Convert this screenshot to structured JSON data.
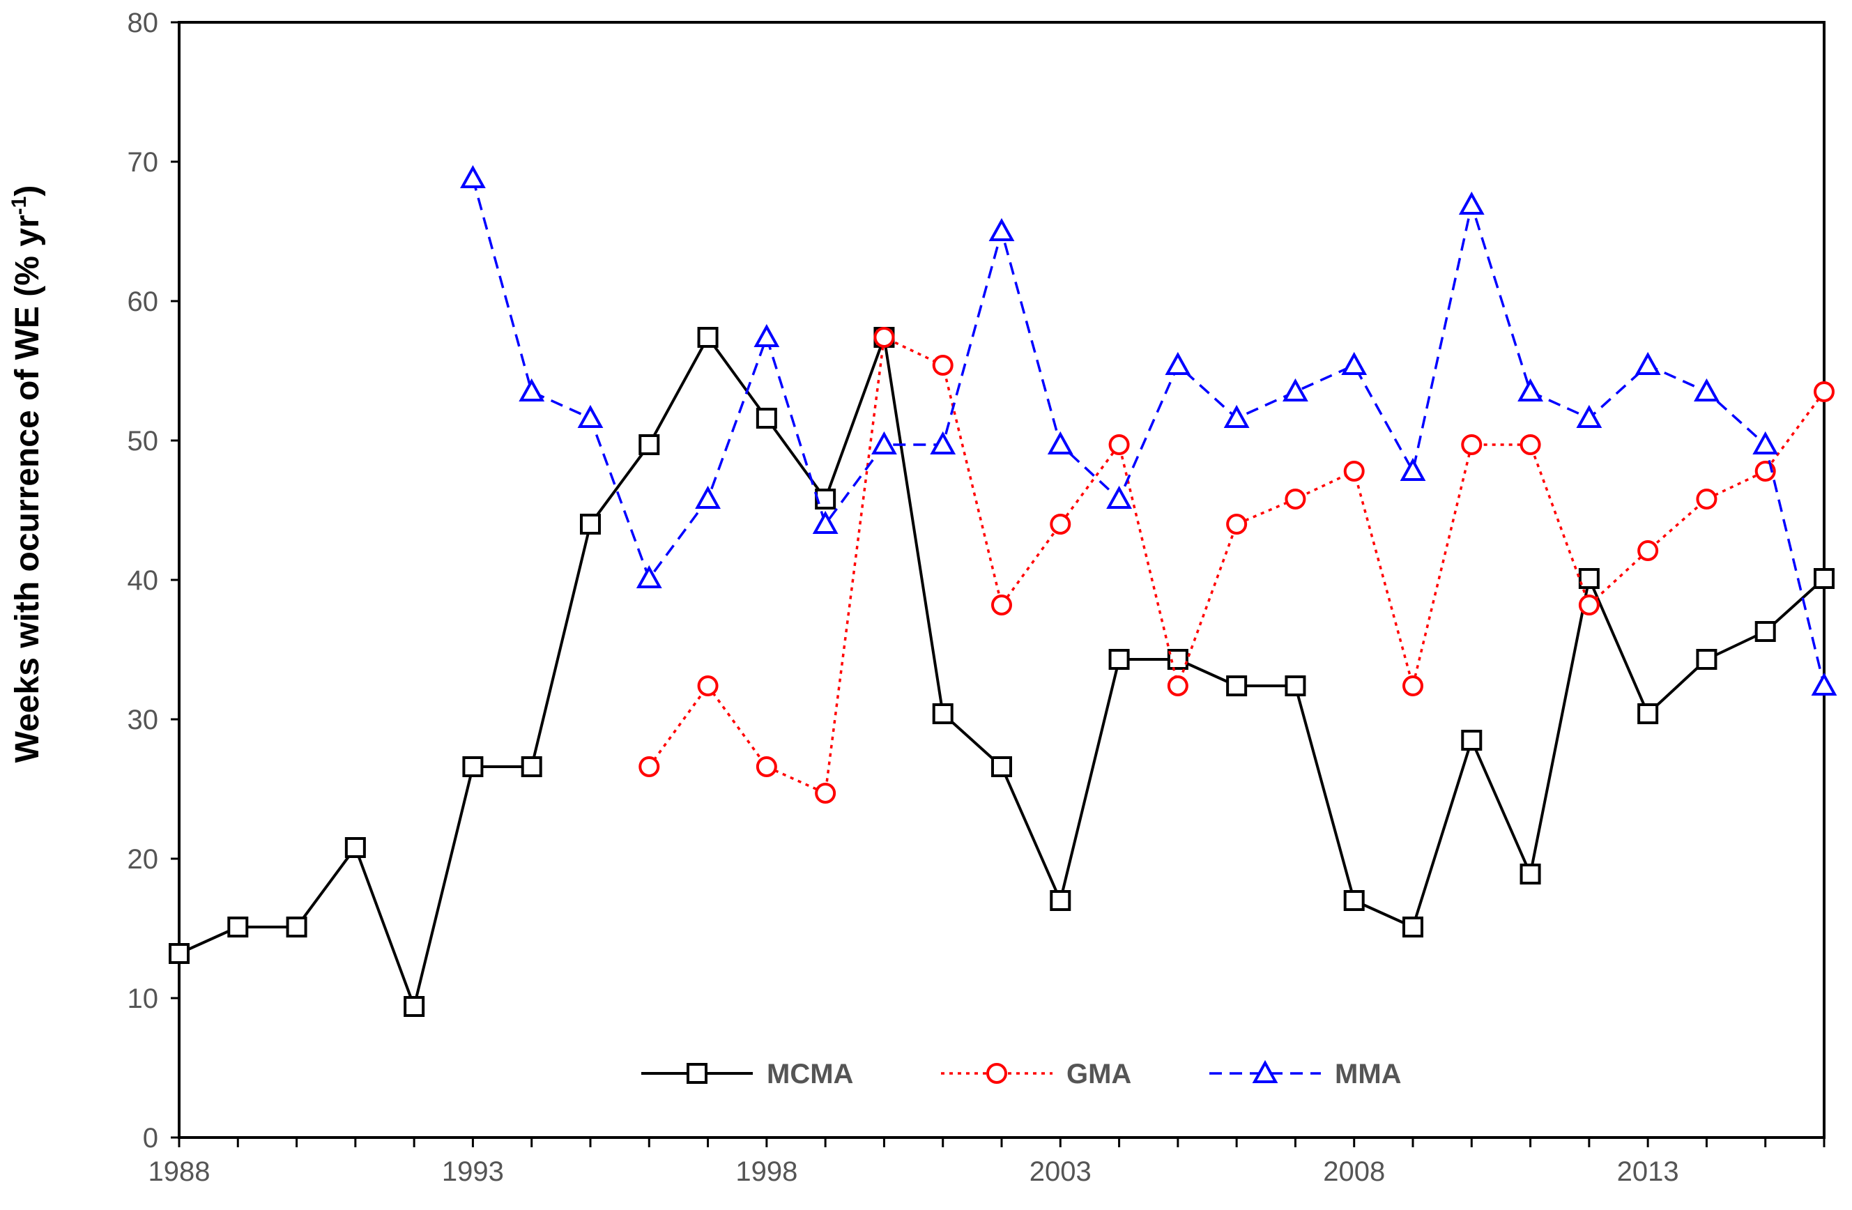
{
  "chart_data": {
    "type": "line",
    "title": "",
    "xlabel": "",
    "ylabel_main": "Weeks with ocurrence of WE (% yr",
    "ylabel_sup": "-1",
    "ylabel_end": ")",
    "xlim": [
      1988,
      2016
    ],
    "ylim": [
      0,
      80
    ],
    "x_ticks": [
      1988,
      1993,
      1998,
      2003,
      2008,
      2013
    ],
    "y_ticks": [
      0,
      10,
      20,
      30,
      40,
      50,
      60,
      70,
      80
    ],
    "grid": false,
    "legend_position": "bottom-center",
    "series": [
      {
        "name": "MCMA",
        "marker": "square",
        "line": "solid",
        "color": "#000000",
        "x": [
          1988,
          1989,
          1990,
          1991,
          1992,
          1993,
          1994,
          1995,
          1996,
          1997,
          1998,
          1999,
          2000,
          2001,
          2002,
          2003,
          2004,
          2005,
          2006,
          2007,
          2008,
          2009,
          2010,
          2011,
          2012,
          2013,
          2014,
          2015,
          2016
        ],
        "values": [
          13.2,
          15.1,
          15.1,
          20.8,
          9.4,
          26.6,
          26.6,
          44.0,
          49.7,
          57.4,
          51.6,
          45.8,
          57.4,
          30.4,
          26.6,
          17.0,
          34.3,
          34.3,
          32.4,
          32.4,
          17.0,
          15.1,
          28.5,
          18.9,
          40.1,
          30.4,
          34.3,
          36.3,
          40.1
        ]
      },
      {
        "name": "GMA",
        "marker": "circle",
        "line": "dotted",
        "color": "#ff0000",
        "x": [
          1996,
          1997,
          1998,
          1999,
          2000,
          2001,
          2002,
          2003,
          2004,
          2005,
          2006,
          2007,
          2008,
          2009,
          2010,
          2011,
          2012,
          2013,
          2014,
          2015,
          2016
        ],
        "values": [
          26.6,
          32.4,
          26.6,
          24.7,
          57.4,
          55.4,
          38.2,
          44.0,
          49.7,
          32.4,
          44.0,
          45.8,
          47.8,
          32.4,
          49.7,
          49.7,
          38.2,
          42.1,
          45.8,
          47.8,
          53.5
        ]
      },
      {
        "name": "MMA",
        "marker": "triangle",
        "line": "dashed",
        "color": "#0000ff",
        "x": [
          1993,
          1994,
          1995,
          1996,
          1997,
          1998,
          1999,
          2000,
          2001,
          2002,
          2003,
          2004,
          2005,
          2006,
          2007,
          2008,
          2009,
          2010,
          2011,
          2012,
          2013,
          2014,
          2015,
          2016
        ],
        "values": [
          68.8,
          53.5,
          51.6,
          40.1,
          45.8,
          57.4,
          44.0,
          49.7,
          49.7,
          65.0,
          49.7,
          45.8,
          55.4,
          51.6,
          53.5,
          55.4,
          47.8,
          66.9,
          53.5,
          51.6,
          55.4,
          53.5,
          49.7,
          32.4
        ]
      }
    ]
  }
}
